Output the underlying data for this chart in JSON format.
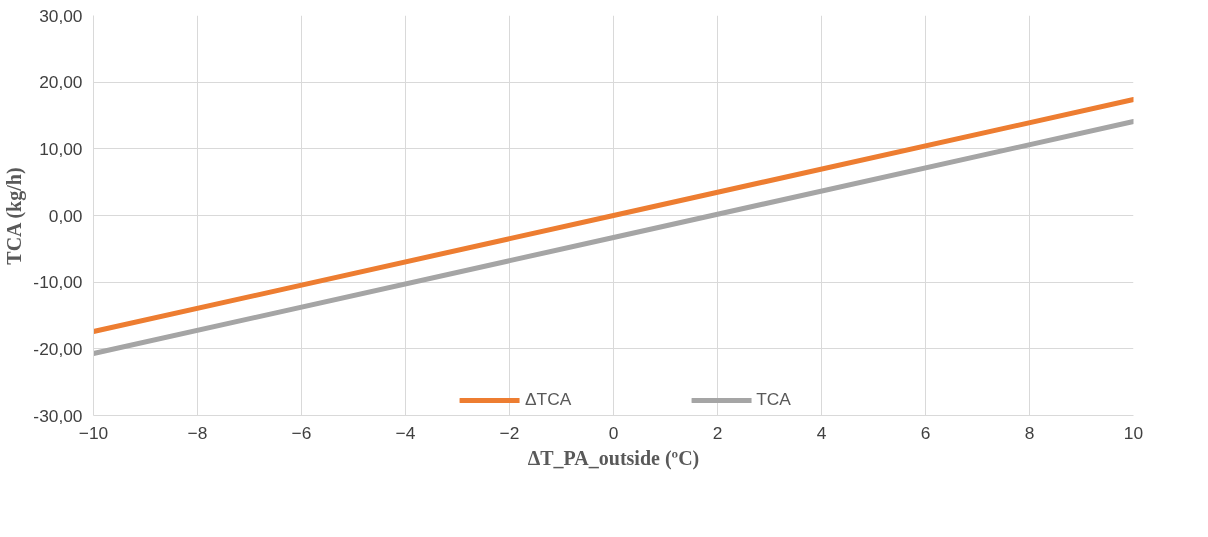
{
  "chart_data": {
    "type": "line",
    "xlabel": "ΔT_PA_outside (ºC)",
    "ylabel": "TCA (kg/h)",
    "x": [
      -10,
      0,
      10
    ],
    "series": [
      {
        "name": "ΔTCA",
        "color": "#ed7d31",
        "values": [
          -17.4,
          0,
          17.4
        ]
      },
      {
        "name": "TCA",
        "color": "#a5a5a5",
        "values": [
          -20.7,
          -3.3,
          14.1
        ]
      }
    ],
    "xlim": [
      -10,
      10
    ],
    "xticks": [
      -10,
      -8,
      -6,
      -4,
      -2,
      0,
      2,
      4,
      6,
      8,
      10
    ],
    "ylim": [
      -30,
      30
    ],
    "yticks": [
      {
        "value": -30,
        "label": "-30,00"
      },
      {
        "value": -20,
        "label": "-20,00"
      },
      {
        "value": -10,
        "label": "-10,00"
      },
      {
        "value": 0,
        "label": "0,00"
      },
      {
        "value": 10,
        "label": "10,00"
      },
      {
        "value": 20,
        "label": "20,00"
      },
      {
        "value": 30,
        "label": "30,00"
      }
    ],
    "grid": true,
    "legend": "bottom",
    "marker": "none",
    "line_style": "solid"
  }
}
